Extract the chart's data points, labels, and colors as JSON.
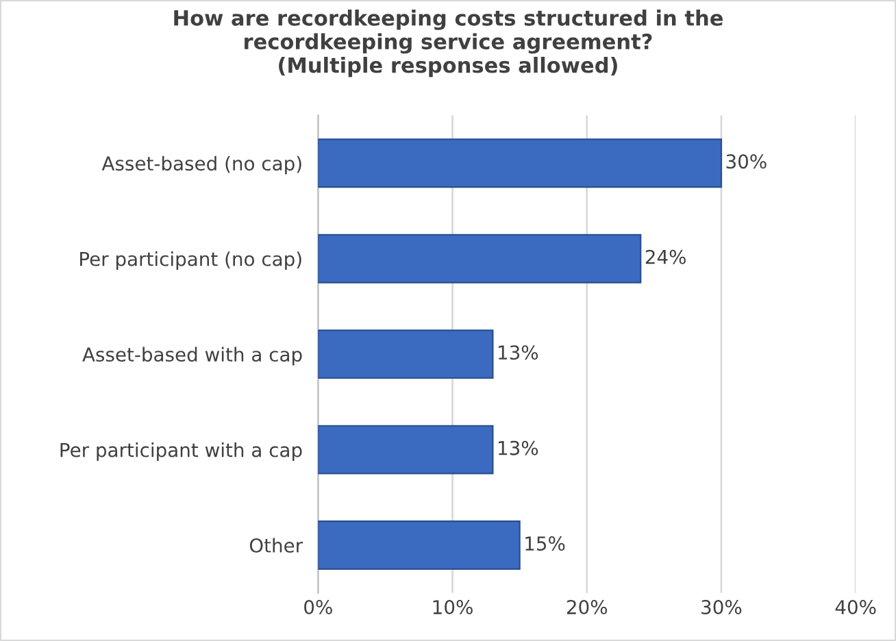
{
  "chart_data": {
    "type": "bar",
    "orientation": "horizontal",
    "title": "How are recordkeeping costs structured in the\nrecordkeeping service agreement?\n(Multiple responses allowed)",
    "categories": [
      "Asset-based (no cap)",
      "Per participant (no cap)",
      "Asset-based with a cap",
      "Per participant with a cap",
      "Other"
    ],
    "values": [
      30,
      24,
      13,
      13,
      15
    ],
    "value_labels": [
      "30%",
      "24%",
      "13%",
      "13%",
      "15%"
    ],
    "color": "#3a6bc0",
    "xlim": [
      0,
      40
    ],
    "xticks": [
      {
        "value": 0,
        "label": "0%"
      },
      {
        "value": 10,
        "label": "10%"
      },
      {
        "value": 20,
        "label": "20%"
      },
      {
        "value": 30,
        "label": "30%"
      },
      {
        "value": 40,
        "label": "40%"
      }
    ],
    "grid": "x"
  }
}
